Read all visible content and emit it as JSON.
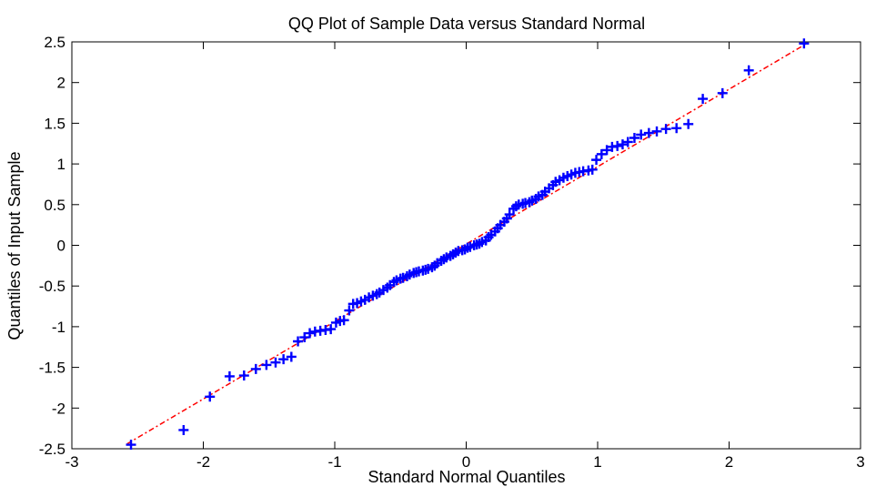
{
  "chart_data": {
    "type": "scatter",
    "title": "QQ Plot of Sample Data versus Standard Normal",
    "xlabel": "Standard Normal Quantiles",
    "ylabel": "Quantiles of Input Sample",
    "xlim": [
      -3,
      3
    ],
    "ylim": [
      -2.5,
      2.5
    ],
    "xticks": [
      "-3",
      "-2",
      "-1",
      "0",
      "1",
      "2",
      "3"
    ],
    "yticks": [
      "-2.5",
      "-2",
      "-1.5",
      "-1",
      "-0.5",
      "0",
      "0.5",
      "1",
      "1.5",
      "2",
      "2.5"
    ],
    "grid": false,
    "marker_color": "#0000ff",
    "line_color": "#ff0000",
    "reference_line": {
      "x": [
        -2.58,
        2.58
      ],
      "y": [
        -2.44,
        2.47
      ]
    },
    "x": [
      -2.55,
      -2.15,
      -1.95,
      -1.8,
      -1.69,
      -1.6,
      -1.52,
      -1.45,
      -1.39,
      -1.33,
      -1.28,
      -1.23,
      -1.19,
      -1.15,
      -1.11,
      -1.07,
      -1.03,
      -0.99,
      -0.96,
      -0.93,
      -0.89,
      -0.86,
      -0.83,
      -0.8,
      -0.77,
      -0.74,
      -0.71,
      -0.68,
      -0.66,
      -0.63,
      -0.6,
      -0.58,
      -0.55,
      -0.53,
      -0.5,
      -0.48,
      -0.45,
      -0.43,
      -0.4,
      -0.38,
      -0.36,
      -0.33,
      -0.31,
      -0.29,
      -0.26,
      -0.24,
      -0.22,
      -0.19,
      -0.17,
      -0.15,
      -0.12,
      -0.1,
      -0.08,
      -0.06,
      -0.03,
      -0.01,
      0.01,
      0.03,
      0.06,
      0.08,
      0.1,
      0.12,
      0.15,
      0.17,
      0.19,
      0.22,
      0.24,
      0.26,
      0.29,
      0.31,
      0.33,
      0.36,
      0.38,
      0.4,
      0.43,
      0.45,
      0.48,
      0.5,
      0.53,
      0.55,
      0.58,
      0.6,
      0.63,
      0.66,
      0.68,
      0.71,
      0.74,
      0.77,
      0.8,
      0.83,
      0.86,
      0.89,
      0.93,
      0.96,
      0.99,
      1.03,
      1.07,
      1.11,
      1.15,
      1.19,
      1.23,
      1.28,
      1.33,
      1.39,
      1.45,
      1.52,
      1.6,
      1.69,
      1.8,
      1.95,
      2.15,
      2.57
    ],
    "y": [
      -2.45,
      -2.27,
      -1.86,
      -1.61,
      -1.6,
      -1.52,
      -1.47,
      -1.44,
      -1.4,
      -1.37,
      -1.18,
      -1.13,
      -1.08,
      -1.06,
      -1.05,
      -1.04,
      -1.03,
      -0.95,
      -0.93,
      -0.92,
      -0.8,
      -0.72,
      -0.71,
      -0.69,
      -0.67,
      -0.64,
      -0.62,
      -0.6,
      -0.58,
      -0.55,
      -0.52,
      -0.49,
      -0.45,
      -0.43,
      -0.41,
      -0.4,
      -0.38,
      -0.36,
      -0.34,
      -0.33,
      -0.32,
      -0.31,
      -0.3,
      -0.29,
      -0.27,
      -0.25,
      -0.22,
      -0.19,
      -0.17,
      -0.15,
      -0.13,
      -0.11,
      -0.09,
      -0.07,
      -0.06,
      -0.05,
      -0.03,
      -0.02,
      0.0,
      0.01,
      0.02,
      0.04,
      0.06,
      0.1,
      0.13,
      0.17,
      0.21,
      0.25,
      0.29,
      0.33,
      0.38,
      0.45,
      0.48,
      0.5,
      0.51,
      0.52,
      0.53,
      0.55,
      0.57,
      0.6,
      0.62,
      0.66,
      0.7,
      0.74,
      0.78,
      0.8,
      0.83,
      0.85,
      0.87,
      0.89,
      0.9,
      0.91,
      0.92,
      0.93,
      1.05,
      1.12,
      1.17,
      1.21,
      1.22,
      1.24,
      1.27,
      1.32,
      1.36,
      1.38,
      1.4,
      1.43,
      1.44,
      1.49,
      1.8,
      1.87,
      2.15,
      2.48
    ]
  }
}
